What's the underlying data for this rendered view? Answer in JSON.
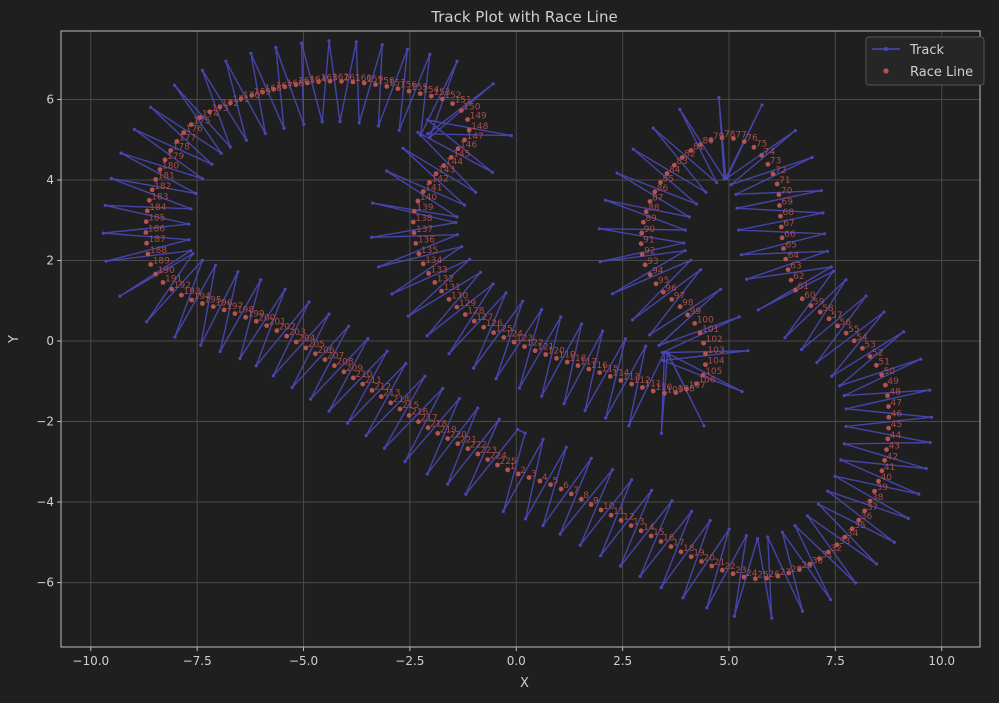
{
  "colors": {
    "background": "#1f1f1f",
    "axes_edge": "#bdbdbd",
    "grid": "#4a4a4a",
    "text": "#cfcfcf",
    "track": "#4a48b8",
    "race_line": "#b05454",
    "race_label": "#a84e4e",
    "legend_bg": "#262626",
    "legend_edge": "#555555"
  },
  "chart_data": {
    "type": "scatter",
    "title": "Track Plot with Race Line",
    "xlabel": "X",
    "ylabel": "Y",
    "xlim": [
      -10.7,
      10.9
    ],
    "ylim": [
      -7.6,
      7.7
    ],
    "xticks": [
      -10.0,
      -7.5,
      -5.0,
      -2.5,
      0.0,
      2.5,
      5.0,
      7.5,
      10.0
    ],
    "xtick_labels": [
      "−10.0",
      "−7.5",
      "−5.0",
      "−2.5",
      "0.0",
      "2.5",
      "5.0",
      "7.5",
      "10.0"
    ],
    "yticks": [
      -6,
      -4,
      -2,
      0,
      2,
      4,
      6
    ],
    "ytick_labels": [
      "−6",
      "−4",
      "−2",
      "0",
      "2",
      "4",
      "6"
    ],
    "grid": true,
    "legend_position": "top-right",
    "legend": [
      "Track",
      "Race Line"
    ],
    "track_half_width": 1.0,
    "race_line_points": [
      [
        -0.2,
        -3.2
      ],
      [
        1.0,
        -3.65
      ],
      [
        2.0,
        -4.2
      ],
      [
        3.0,
        -4.75
      ],
      [
        4.0,
        -5.3
      ],
      [
        5.0,
        -5.75
      ],
      [
        5.8,
        -5.9
      ],
      [
        6.8,
        -5.6
      ],
      [
        7.6,
        -5.0
      ],
      [
        8.2,
        -4.2
      ],
      [
        8.6,
        -3.2
      ],
      [
        8.75,
        -2.2
      ],
      [
        8.7,
        -1.2
      ],
      [
        8.4,
        -0.5
      ],
      [
        7.9,
        0.05
      ],
      [
        7.3,
        0.6
      ],
      [
        6.6,
        1.2
      ],
      [
        6.3,
        2.2
      ],
      [
        6.2,
        3.2
      ],
      [
        6.1,
        4.0
      ],
      [
        5.6,
        4.8
      ],
      [
        4.9,
        5.05
      ],
      [
        4.2,
        4.8
      ],
      [
        3.5,
        4.1
      ],
      [
        3.05,
        3.2
      ],
      [
        2.95,
        2.2
      ],
      [
        3.3,
        1.4
      ],
      [
        3.9,
        0.8
      ],
      [
        4.3,
        0.25
      ],
      [
        4.45,
        -0.4
      ],
      [
        4.3,
        -1.0
      ],
      [
        3.6,
        -1.3
      ],
      [
        2.8,
        -1.1
      ],
      [
        2.0,
        -0.8
      ],
      [
        1.0,
        -0.45
      ],
      [
        0.0,
        -0.05
      ],
      [
        -1.0,
        0.5
      ],
      [
        -1.8,
        1.3
      ],
      [
        -2.3,
        2.2
      ],
      [
        -2.4,
        3.2
      ],
      [
        -2.0,
        4.0
      ],
      [
        -1.5,
        4.6
      ],
      [
        -1.1,
        5.3
      ],
      [
        -1.5,
        5.9
      ],
      [
        -2.5,
        6.2
      ],
      [
        -3.5,
        6.4
      ],
      [
        -4.5,
        6.45
      ],
      [
        -5.5,
        6.3
      ],
      [
        -6.5,
        6.0
      ],
      [
        -7.5,
        5.5
      ],
      [
        -8.2,
        4.6
      ],
      [
        -8.6,
        3.6
      ],
      [
        -8.7,
        2.6
      ],
      [
        -8.5,
        1.7
      ],
      [
        -7.8,
        1.1
      ],
      [
        -6.8,
        0.75
      ],
      [
        -5.8,
        0.35
      ],
      [
        -4.9,
        -0.2
      ],
      [
        -4.0,
        -0.8
      ],
      [
        -3.0,
        -1.5
      ],
      [
        -2.0,
        -2.2
      ],
      [
        -1.0,
        -2.75
      ],
      [
        -0.2,
        -3.2
      ]
    ],
    "race_line_labels": [
      "1",
      "2",
      "3",
      "4",
      "5",
      "6",
      "7",
      "8",
      "9",
      "10",
      "11",
      "12",
      "13",
      "14",
      "15",
      "16",
      "17",
      "18",
      "19",
      "20",
      "21",
      "22",
      "23",
      "24",
      "25",
      "26",
      "27",
      "28",
      "29",
      "30",
      "31",
      "32",
      "33",
      "34",
      "35",
      "36",
      "37",
      "38",
      "39",
      "40",
      "41",
      "42",
      "43",
      "44",
      "45",
      "46",
      "47",
      "48",
      "49",
      "50",
      "51",
      "52",
      "53",
      "54",
      "55",
      "56",
      "57",
      "58",
      "59",
      "60",
      "61",
      "62",
      "63",
      "64",
      "65",
      "66",
      "67",
      "68",
      "69",
      "70",
      "71",
      "72",
      "73",
      "74",
      "75",
      "76",
      "77",
      "78",
      "79",
      "80",
      "81",
      "82",
      "83",
      "84",
      "85",
      "86",
      "87",
      "88",
      "89",
      "90",
      "91",
      "92",
      "93",
      "94",
      "95",
      "96",
      "97",
      "98",
      "99",
      "100",
      "101",
      "102",
      "103",
      "104",
      "105",
      "106",
      "107",
      "108",
      "109",
      "110",
      "111",
      "112",
      "113",
      "114",
      "115",
      "116",
      "117",
      "118",
      "119",
      "120",
      "121",
      "122",
      "123",
      "124",
      "125",
      "126",
      "127",
      "128",
      "129",
      "130",
      "131",
      "132",
      "133",
      "134",
      "135",
      "136",
      "137",
      "138",
      "139",
      "140",
      "141",
      "142",
      "143",
      "144",
      "145",
      "146",
      "147",
      "148",
      "149",
      "150",
      "151",
      "152",
      "153",
      "154",
      "155",
      "156",
      "157",
      "158",
      "159",
      "160",
      "161",
      "162",
      "163",
      "164",
      "165",
      "166",
      "167",
      "168",
      "169",
      "170",
      "171",
      "172",
      "173",
      "174",
      "175",
      "176",
      "177",
      "178",
      "179",
      "180",
      "181",
      "182",
      "183",
      "184",
      "185",
      "186",
      "187",
      "188",
      "189",
      "190",
      "191",
      "192",
      "193",
      "194",
      "195",
      "196",
      "197",
      "198",
      "199",
      "200",
      "201",
      "202",
      "203",
      "204",
      "205",
      "206",
      "207",
      "208",
      "209",
      "210",
      "211",
      "212",
      "213",
      "214",
      "215",
      "216",
      "217",
      "218",
      "219",
      "220",
      "221",
      "222",
      "223",
      "224",
      "225"
    ]
  }
}
